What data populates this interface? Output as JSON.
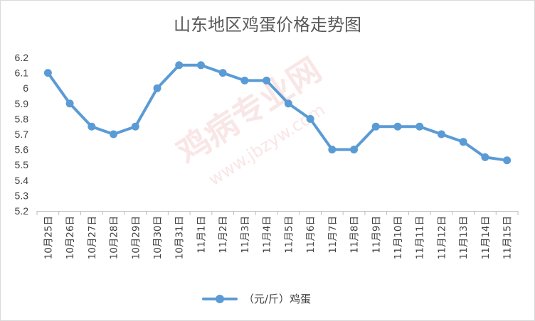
{
  "chart_data": {
    "type": "line",
    "title": "山东地区鸡蛋价格走势图",
    "xlabel": "",
    "ylabel": "",
    "ylim": [
      5.2,
      6.2
    ],
    "yticks": [
      5.2,
      5.3,
      5.4,
      5.5,
      5.6,
      5.7,
      5.8,
      5.9,
      6,
      6.1,
      6.2
    ],
    "grid": false,
    "legend_position": "bottom",
    "categories": [
      "10月25日",
      "10月26日",
      "10月27日",
      "10月28日",
      "10月29日",
      "10月30日",
      "10月31日",
      "11月1日",
      "11月2日",
      "11月3日",
      "11月4日",
      "11月5日",
      "11月6日",
      "11月7日",
      "11月8日",
      "11月9日",
      "11月10日",
      "11月11日",
      "11月12日",
      "11月13日",
      "11月14日",
      "11月15日"
    ],
    "series": [
      {
        "name": "（元/斤）鸡蛋",
        "color": "#5b9bd5",
        "values": [
          6.1,
          5.9,
          5.75,
          5.7,
          5.75,
          6.0,
          6.15,
          6.15,
          6.1,
          6.05,
          6.05,
          5.9,
          5.8,
          5.6,
          5.6,
          5.75,
          5.75,
          5.75,
          5.7,
          5.65,
          5.55,
          5.53
        ]
      }
    ]
  },
  "watermark": {
    "main": "鸡病专业网",
    "url": "www.jbzyw.com"
  }
}
